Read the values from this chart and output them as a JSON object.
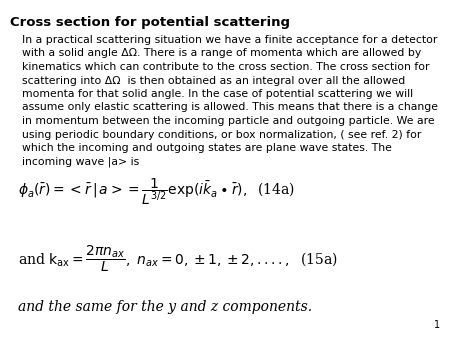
{
  "title": "Cross section for potential scattering",
  "body_lines": [
    "In a practical scattering situation we have a finite acceptance for a detector",
    "with a solid angle ΔΩ. There is a range of momenta which are allowed by",
    "kinematics which can contribute to the cross section. The cross section for",
    "scattering into ΔΩ  is then obtained as an integral over all the allowed",
    "momenta for that solid angle. In the case of potential scattering we will",
    "assume only elastic scattering is allowed. This means that there is a change",
    "in momentum between the incoming particle and outgoing particle. We are",
    "using periodic boundary conditions, or box normalization, ( see ref. 2) for",
    "which the incoming and outgoing states are plane wave states. The",
    "incoming wave |a> is"
  ],
  "eq1": "$\\phi_a(\\bar{r}) =<\\bar{r}\\,|\\,a>= \\dfrac{1}{L^{3/2}}\\mathrm{exp}(i\\bar{k}_a \\bullet \\bar{r}),\\;$ (14a)",
  "eq2": "and $\\mathrm{k}_{\\mathrm{ax}} = \\dfrac{2\\pi n_{ax}}{L},\\; n_{ax} = 0, \\pm 1, \\pm 2,....,\\;$ (15a)",
  "eq3": "and the same for the y and z components.",
  "page_number": "1",
  "bg_color": "#ffffff",
  "text_color": "#000000",
  "title_fontsize": 9.5,
  "body_fontsize": 7.8,
  "eq_fontsize": 10,
  "eq3_fontsize": 10
}
